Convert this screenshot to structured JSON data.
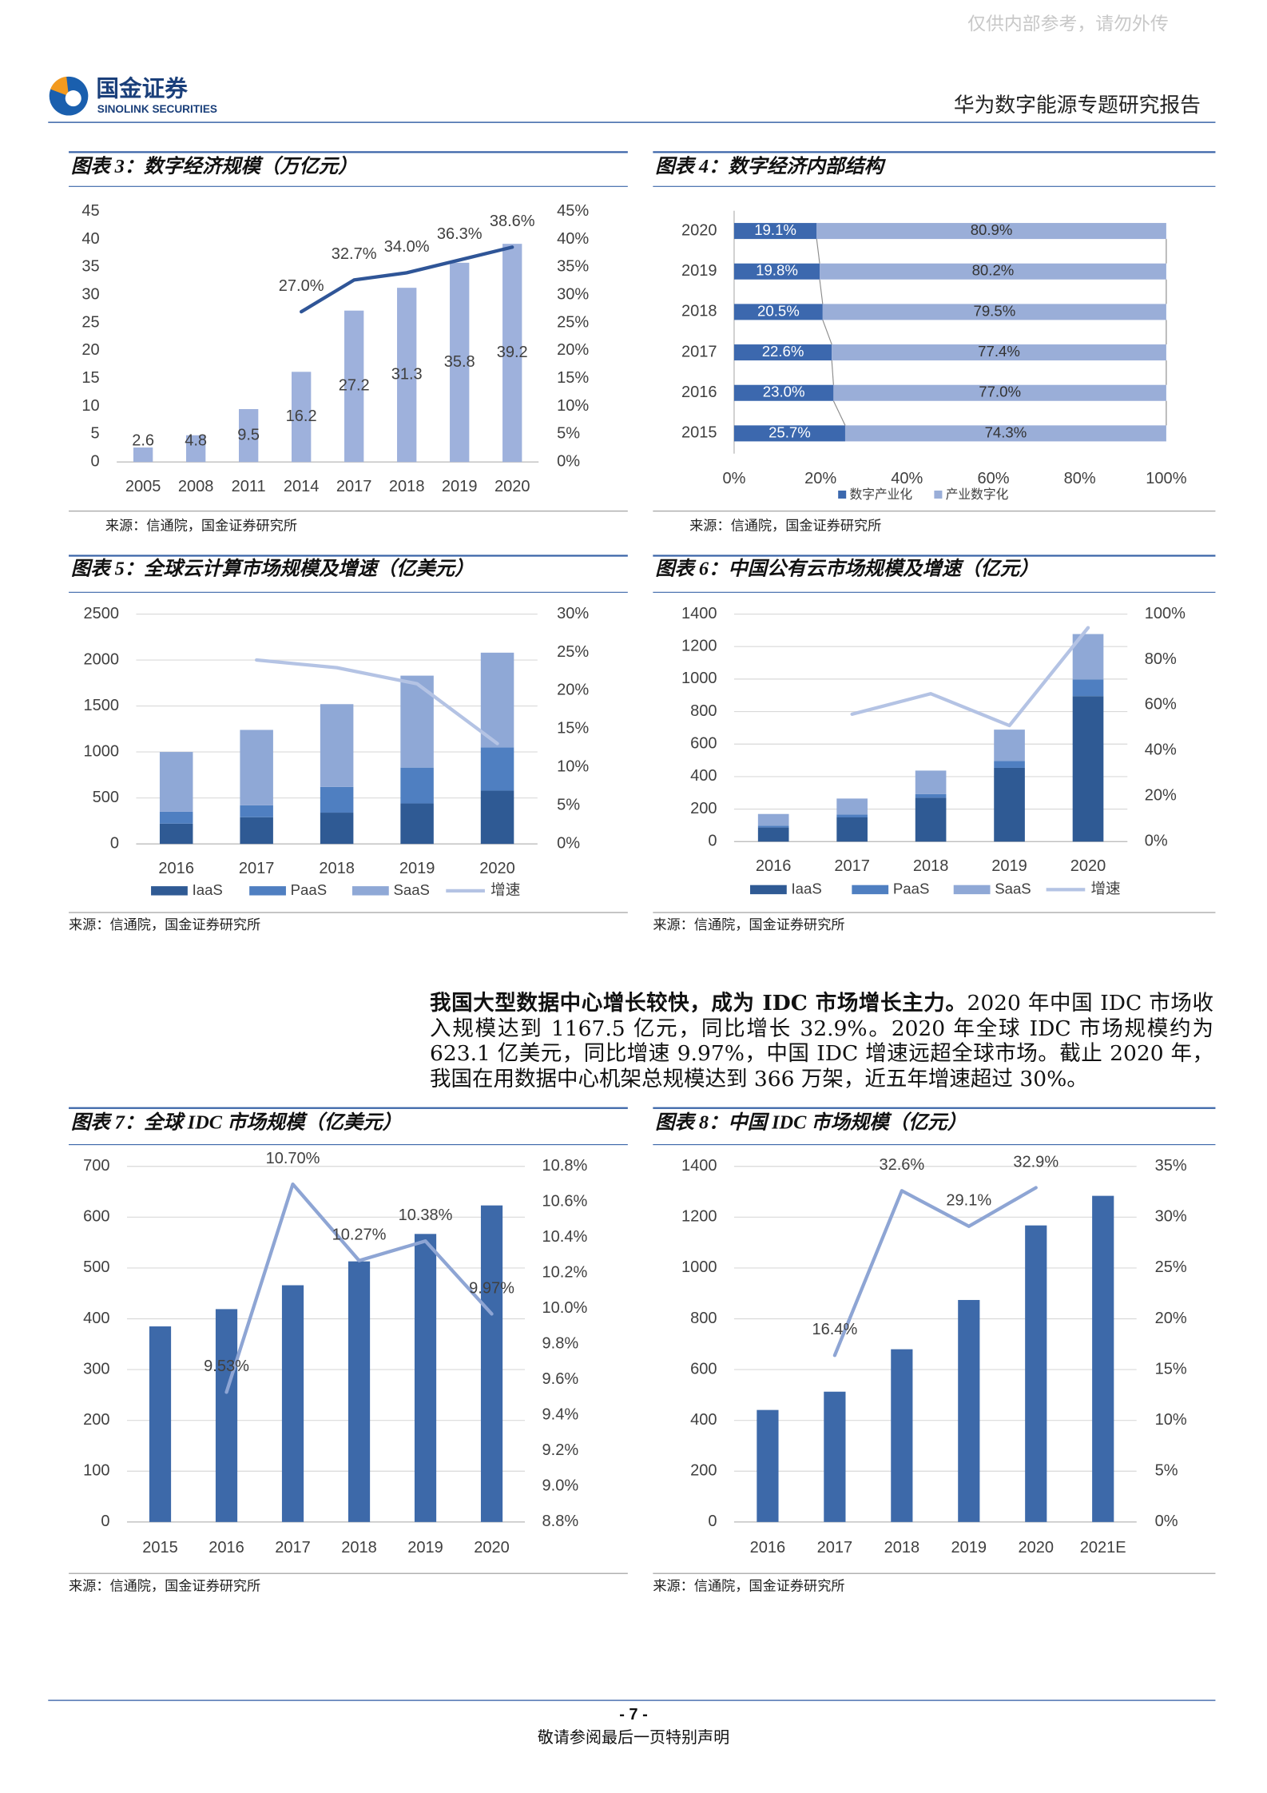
{
  "header": {
    "watermark": "仅供内部参考，请勿外传",
    "logo_cn": "国金证券",
    "logo_en": "SINOLINK SECURITIES",
    "report_title": "华为数字能源专题研究报告"
  },
  "chart_data": [
    {
      "type": "combo",
      "title": "图表 3：数字经济规模（万亿元）",
      "source": "来源：信通院，国金证券研究所",
      "categories": [
        "2005",
        "2008",
        "2011",
        "2014",
        "2017",
        "2018",
        "2019",
        "2020"
      ],
      "series": [
        {
          "type": "bar",
          "color": "#9eb1dc",
          "data_labels": true,
          "values": [
            2.6,
            4.8,
            9.5,
            16.2,
            27.2,
            31.3,
            35.8,
            39.2
          ]
        },
        {
          "type": "line",
          "axis": "y2",
          "color": "#2f5597",
          "values": [
            null,
            null,
            null,
            27.0,
            32.7,
            34.0,
            36.3,
            38.6
          ],
          "value_labels": [
            null,
            null,
            null,
            "27.0%",
            "32.7%",
            "34.0%",
            "36.3%",
            "38.6%"
          ]
        }
      ],
      "ylim": [
        0,
        45
      ],
      "yticks": [
        0,
        5,
        10,
        15,
        20,
        25,
        30,
        35,
        40,
        45
      ],
      "y2lim": [
        0,
        45
      ],
      "y2ticks": [
        {
          "value": 0,
          "label": "0%"
        },
        {
          "value": 5,
          "label": "5%"
        },
        {
          "value": 10,
          "label": "10%"
        },
        {
          "value": 15,
          "label": "15%"
        },
        {
          "value": 20,
          "label": "20%"
        },
        {
          "value": 25,
          "label": "25%"
        },
        {
          "value": 30,
          "label": "30%"
        },
        {
          "value": 35,
          "label": "35%"
        },
        {
          "value": 40,
          "label": "40%"
        },
        {
          "value": 45,
          "label": "45%"
        }
      ],
      "grid": false
    },
    {
      "type": "hbar100",
      "title": "图表 4：数字经济内部结构",
      "source": "来源：信通院，国金证券研究所",
      "categories": [
        "2020",
        "2019",
        "2018",
        "2017",
        "2016",
        "2015"
      ],
      "series": [
        {
          "name": "数字产业化",
          "color": "#3c68ae",
          "values": [
            19.1,
            19.8,
            20.5,
            22.6,
            23.0,
            25.7
          ],
          "value_labels": [
            "19.1%",
            "19.8%",
            "20.5%",
            "22.6%",
            "23.0%",
            "25.7%"
          ]
        },
        {
          "name": "产业数字化",
          "color": "#9aaed8",
          "values": [
            80.9,
            80.2,
            79.5,
            77.4,
            77.0,
            74.3
          ],
          "value_labels": [
            "80.9%",
            "80.2%",
            "79.5%",
            "77.4%",
            "77.0%",
            "74.3%"
          ]
        }
      ],
      "xlim": [
        0,
        100
      ],
      "xticks": [
        {
          "value": 0,
          "label": "0%"
        },
        {
          "value": 20,
          "label": "20%"
        },
        {
          "value": 40,
          "label": "40%"
        },
        {
          "value": 60,
          "label": "60%"
        },
        {
          "value": 80,
          "label": "80%"
        },
        {
          "value": 100,
          "label": "100%"
        }
      ]
    },
    {
      "type": "combo",
      "title": "图表 5：全球云计算市场规模及增速（亿美元）",
      "source": "来源：信通院，国金证券研究所",
      "categories": [
        "2016",
        "2017",
        "2018",
        "2019",
        "2020"
      ],
      "series": [
        {
          "type": "bar",
          "name": "IaaS",
          "color": "#2f5a94",
          "values": [
            220,
            290,
            340,
            440,
            580
          ]
        },
        {
          "type": "bar",
          "name": "PaaS",
          "color": "#4f7fc1",
          "values": [
            130,
            130,
            280,
            390,
            470
          ]
        },
        {
          "type": "bar",
          "name": "SaaS",
          "color": "#8fa8d6",
          "values": [
            650,
            820,
            900,
            1000,
            1030
          ]
        },
        {
          "type": "line",
          "name": "增速",
          "axis": "y2",
          "color": "#b4c3e4",
          "values": [
            null,
            24.0,
            23.0,
            20.9,
            13.1
          ]
        }
      ],
      "ylim": [
        0,
        2500
      ],
      "yticks": [
        0,
        500,
        1000,
        1500,
        2000,
        2500
      ],
      "y2lim": [
        0,
        30
      ],
      "y2ticks": [
        {
          "value": 0,
          "label": "0%"
        },
        {
          "value": 5,
          "label": "5%"
        },
        {
          "value": 10,
          "label": "10%"
        },
        {
          "value": 15,
          "label": "15%"
        },
        {
          "value": 20,
          "label": "20%"
        },
        {
          "value": 25,
          "label": "25%"
        },
        {
          "value": 30,
          "label": "30%"
        }
      ],
      "grid": true
    },
    {
      "type": "combo",
      "title": "图表 6：中国公有云市场规模及增速（亿元）",
      "source": "来源：信通院，国金证券研究所",
      "categories": [
        "2016",
        "2017",
        "2018",
        "2019",
        "2020"
      ],
      "series": [
        {
          "type": "bar",
          "name": "IaaS",
          "color": "#2f5a94",
          "values": [
            87,
            149,
            270,
            454,
            895
          ]
        },
        {
          "type": "bar",
          "name": "PaaS",
          "color": "#4f7fc1",
          "values": [
            11,
            17,
            22,
            42,
            103
          ]
        },
        {
          "type": "bar",
          "name": "SaaS",
          "color": "#8fa8d6",
          "values": [
            72,
            99,
            145,
            193,
            279
          ]
        },
        {
          "type": "line",
          "name": "增速",
          "axis": "y2",
          "color": "#b4c3e4",
          "values": [
            null,
            56,
            65,
            51,
            94
          ]
        }
      ],
      "ylim": [
        0,
        1400
      ],
      "yticks": [
        0,
        200,
        400,
        600,
        800,
        1000,
        1200,
        1400
      ],
      "y2lim": [
        0,
        100
      ],
      "y2ticks": [
        {
          "value": 0,
          "label": "0%"
        },
        {
          "value": 20,
          "label": "20%"
        },
        {
          "value": 40,
          "label": "40%"
        },
        {
          "value": 60,
          "label": "60%"
        },
        {
          "value": 80,
          "label": "80%"
        },
        {
          "value": 100,
          "label": "100%"
        }
      ],
      "grid": true
    },
    {
      "type": "combo",
      "title": "图表 7：全球 IDC 市场规模（亿美元）",
      "source": "来源：信通院，国金证券研究所",
      "categories": [
        "2015",
        "2016",
        "2017",
        "2018",
        "2019",
        "2020"
      ],
      "series": [
        {
          "type": "bar",
          "color": "#3d69a9",
          "values": [
            385,
            419,
            466,
            513,
            567,
            623.1
          ]
        },
        {
          "type": "line",
          "axis": "y2",
          "color": "#8ea5d4",
          "values": [
            null,
            9.53,
            10.7,
            10.27,
            10.38,
            9.97
          ],
          "value_labels": [
            null,
            "9.53%",
            "10.70%",
            "10.27%",
            "10.38%",
            "9.97%"
          ]
        }
      ],
      "ylim": [
        0,
        700
      ],
      "yticks": [
        0,
        100,
        200,
        300,
        400,
        500,
        600,
        700
      ],
      "y2lim": [
        8.8,
        10.8
      ],
      "y2ticks": [
        {
          "value": 8.8,
          "label": "8.8%"
        },
        {
          "value": 9.0,
          "label": "9.0%"
        },
        {
          "value": 9.2,
          "label": "9.2%"
        },
        {
          "value": 9.4,
          "label": "9.4%"
        },
        {
          "value": 9.6,
          "label": "9.6%"
        },
        {
          "value": 9.8,
          "label": "9.8%"
        },
        {
          "value": 10.0,
          "label": "10.0%"
        },
        {
          "value": 10.2,
          "label": "10.2%"
        },
        {
          "value": 10.4,
          "label": "10.4%"
        },
        {
          "value": 10.6,
          "label": "10.6%"
        },
        {
          "value": 10.8,
          "label": "10.8%"
        }
      ],
      "grid": true
    },
    {
      "type": "combo",
      "title": "图表 8：中国 IDC 市场规模（亿元）",
      "source": "来源：信通院，国金证券研究所",
      "categories": [
        "2016",
        "2017",
        "2018",
        "2019",
        "2020",
        "2021E"
      ],
      "series": [
        {
          "type": "bar",
          "color": "#3d69a9",
          "values": [
            441,
            513,
            680,
            874,
            1167.5,
            1284
          ]
        },
        {
          "type": "line",
          "axis": "y2",
          "color": "#8ea5d4",
          "values": [
            null,
            16.4,
            32.6,
            29.1,
            32.9,
            null
          ],
          "value_labels": [
            null,
            "16.4%",
            "32.6%",
            "29.1%",
            "32.9%",
            null
          ]
        }
      ],
      "ylim": [
        0,
        1400
      ],
      "yticks": [
        0,
        200,
        400,
        600,
        800,
        1000,
        1200,
        1400
      ],
      "y2lim": [
        0,
        35
      ],
      "y2ticks": [
        {
          "value": 0,
          "label": "0%"
        },
        {
          "value": 5,
          "label": "5%"
        },
        {
          "value": 10,
          "label": "10%"
        },
        {
          "value": 15,
          "label": "15%"
        },
        {
          "value": 20,
          "label": "20%"
        },
        {
          "value": 25,
          "label": "25%"
        },
        {
          "value": 30,
          "label": "30%"
        },
        {
          "value": 35,
          "label": "35%"
        }
      ],
      "grid": true
    }
  ],
  "paragraph": {
    "lead": "我国大型数据中心增长较快，成为 IDC 市场增长主力。",
    "body": "2020 年中国 IDC 市场收入规模达到 1167.5 亿元，同比增长 32.9%。2020 年全球 IDC 市场规模约为 623.1 亿美元，同比增速 9.97%，中国 IDC 增速远超全球市场。截止 2020 年，我国在用数据中心机架总规模达到 366 万架，近五年增速超过 30%。"
  },
  "footer": {
    "page": "- 7 -",
    "note": "敬请参阅最后一页特别声明"
  }
}
